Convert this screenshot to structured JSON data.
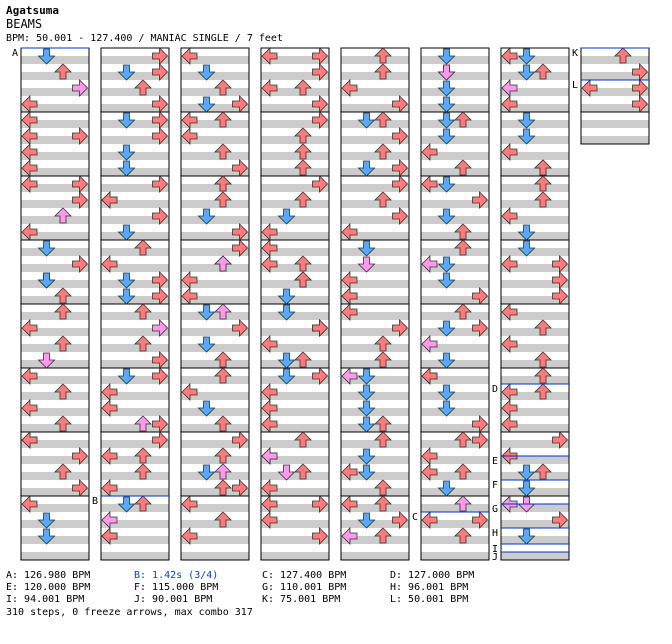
{
  "header": {
    "artist": "Agatsuma",
    "title": "BEAMS",
    "meta_line": "BPM: 50.001 - 127.400 / MANIAC SINGLE / 7 feet"
  },
  "colors": {
    "left_arrow": "#ff7a7a",
    "down_arrow": "#5aa9f2",
    "up_arrow": "#ff7a7a",
    "right_arrow": "#ff7a7a",
    "pink_arrow": "#ff99ee",
    "blue_arrow": "#5aa9f2",
    "stripe": "#cccccc",
    "bpm_line": "#0033cc"
  },
  "chart_data": {
    "type": "step-chart",
    "columns": 8,
    "measures_per_column": 8,
    "lanes": [
      "left",
      "down",
      "up",
      "right"
    ],
    "markers": [
      {
        "label": "A",
        "column": 1,
        "measure": 1
      },
      {
        "label": "B",
        "column": 2,
        "measure": 8
      },
      {
        "label": "C",
        "column": 6,
        "measure": 8
      },
      {
        "label": "D",
        "column": 7,
        "measure": 6
      },
      {
        "label": "E",
        "column": 7,
        "measure": 7
      },
      {
        "label": "F",
        "column": 7,
        "measure": 7
      },
      {
        "label": "G",
        "column": 7,
        "measure": 8
      },
      {
        "label": "H",
        "column": 7,
        "measure": 8
      },
      {
        "label": "I",
        "column": 7,
        "measure": 8
      },
      {
        "label": "J",
        "column": 7,
        "measure": 8
      },
      {
        "label": "K",
        "column": 8,
        "measure": 1
      },
      {
        "label": "L",
        "column": 8,
        "measure": 1
      }
    ],
    "bpm_changes": [
      {
        "id": "A",
        "text": "A: 126.980 BPM",
        "color": "#000000"
      },
      {
        "id": "B",
        "text": "B: 1.42s (3/4)",
        "color": "#0044cc"
      },
      {
        "id": "C",
        "text": "C: 127.400 BPM",
        "color": "#000000"
      },
      {
        "id": "D",
        "text": "D: 127.000 BPM",
        "color": "#000000"
      },
      {
        "id": "E",
        "text": "E: 120.000 BPM",
        "color": "#000000"
      },
      {
        "id": "F",
        "text": "F: 115.000 BPM",
        "color": "#000000"
      },
      {
        "id": "G",
        "text": "G: 110.001 BPM",
        "color": "#000000"
      },
      {
        "id": "H",
        "text": "H: 96.001 BPM",
        "color": "#000000"
      },
      {
        "id": "I",
        "text": "I: 94.001 BPM",
        "color": "#000000"
      },
      {
        "id": "J",
        "text": "J: 90.001 BPM",
        "color": "#000000"
      },
      {
        "id": "K",
        "text": "K: 75.001 BPM",
        "color": "#000000"
      },
      {
        "id": "L",
        "text": "L: 50.001 BPM",
        "color": "#000000"
      }
    ],
    "stats": "310 steps, 0 freeze arrows, max combo 317"
  }
}
